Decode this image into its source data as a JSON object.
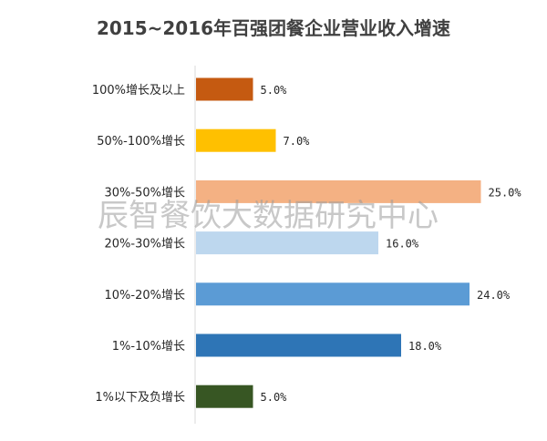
{
  "chart_data": {
    "type": "bar",
    "orientation": "horizontal",
    "title": "2015~2016年百强团餐企业营业收入增速",
    "categories": [
      "100%增长及以上",
      "50%-100%增长",
      "30%-50%增长",
      "20%-30%增长",
      "10%-20%增长",
      "1%-10%增长",
      "1%以下及负增长"
    ],
    "values": [
      5.0,
      7.0,
      25.0,
      16.0,
      24.0,
      18.0,
      5.0
    ],
    "value_labels": [
      "5.0%",
      "7.0%",
      "25.0%",
      "16.0%",
      "24.0%",
      "18.0%",
      "5.0%"
    ],
    "colors": [
      "#c55a11",
      "#ffc000",
      "#f4b183",
      "#bdd7ee",
      "#5b9bd5",
      "#2e75b6",
      "#375623"
    ],
    "xlim": [
      0,
      26
    ],
    "xlabel": "",
    "ylabel": "",
    "grid": false,
    "legend": "none"
  },
  "watermark": "辰智餐饮大数据研究中心"
}
